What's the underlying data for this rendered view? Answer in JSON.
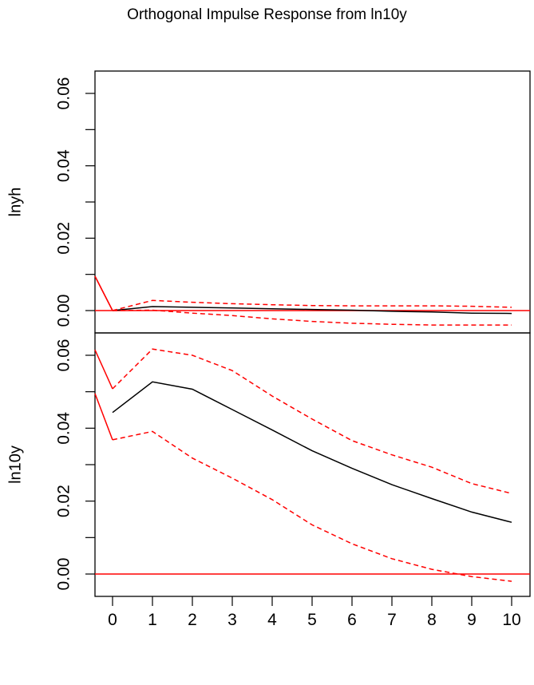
{
  "chart_data": {
    "type": "line",
    "title": "Orthogonal Impulse Response from ln10y",
    "x": [
      0,
      1,
      2,
      3,
      4,
      5,
      6,
      7,
      8,
      9,
      10
    ],
    "xlim": [
      0,
      10
    ],
    "x_ticks": [
      "0",
      "1",
      "2",
      "3",
      "4",
      "5",
      "6",
      "7",
      "8",
      "9",
      "10"
    ],
    "grid": false,
    "legend": "none",
    "colors": {
      "response": "#000000",
      "ci": "#ff0000",
      "zero": "#ff0000"
    },
    "panels": [
      {
        "ylabel": "lnyh",
        "ylim": [
          0,
          0.06
        ],
        "y_ticks": [
          "0.00",
          "0.02",
          "0.04",
          "0.06"
        ],
        "series": [
          {
            "role": "response",
            "values": [
              0.0,
              0.0011,
              0.0009,
              0.0007,
              0.0005,
              0.0003,
              0.0001,
              -0.0002,
              -0.0004,
              -0.0007,
              -0.0008
            ]
          },
          {
            "role": "upper",
            "values": [
              0.0,
              0.0028,
              0.0023,
              0.0019,
              0.0016,
              0.0014,
              0.0013,
              0.0013,
              0.0013,
              0.0012,
              0.0009
            ]
          },
          {
            "role": "lower",
            "values": [
              0.0,
              0.0001,
              -0.0007,
              -0.0014,
              -0.0023,
              -0.003,
              -0.0035,
              -0.0038,
              -0.004,
              -0.004,
              -0.004
            ]
          }
        ],
        "edge_lines": [
          [
            0.0095,
            0.0
          ],
          [
            0.0095,
            0.0
          ]
        ]
      },
      {
        "ylabel": "ln10y",
        "ylim": [
          0,
          0.06
        ],
        "y_ticks": [
          "0.00",
          "0.02",
          "0.04",
          "0.06"
        ],
        "series": [
          {
            "role": "response",
            "values": [
              0.0443,
              0.0527,
              0.0507,
              0.0451,
              0.0395,
              0.0338,
              0.029,
              0.0245,
              0.0207,
              0.017,
              0.0142
            ]
          },
          {
            "role": "upper",
            "values": [
              0.0508,
              0.0617,
              0.06,
              0.0558,
              0.0488,
              0.0425,
              0.0366,
              0.0327,
              0.0293,
              0.0248,
              0.0221
            ]
          },
          {
            "role": "lower",
            "values": [
              0.0368,
              0.0391,
              0.0318,
              0.0263,
              0.0204,
              0.0135,
              0.0083,
              0.0042,
              0.0013,
              -0.0007,
              -0.002
            ]
          }
        ],
        "edge_lines": [
          [
            0.0615,
            0.0508
          ],
          [
            0.0495,
            0.0368
          ]
        ]
      }
    ]
  }
}
